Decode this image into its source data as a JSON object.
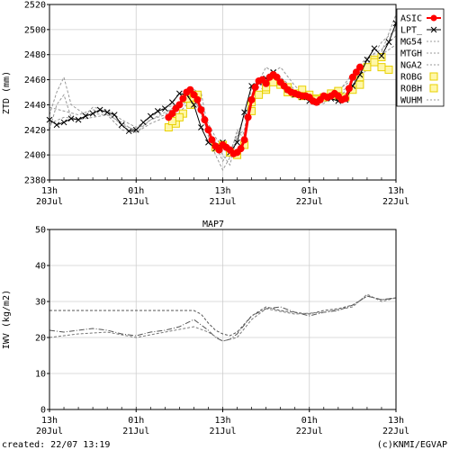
{
  "charts": [
    {
      "type": "line",
      "ylabel": "ZTD (mm)",
      "ylim": [
        2380,
        2520
      ],
      "yticks": [
        2380,
        2400,
        2420,
        2440,
        2460,
        2480,
        2500,
        2520
      ],
      "xlim": [
        0,
        48
      ],
      "xtick_hours": [
        0,
        12,
        24,
        36,
        48
      ],
      "xtick_labels": [
        [
          "13h",
          "20Jul"
        ],
        [
          "01h",
          "21Jul"
        ],
        [
          "13h",
          "21Jul"
        ],
        [
          "01h",
          "22Jul"
        ],
        [
          "13h",
          "22Jul"
        ]
      ],
      "legend_placement": "right",
      "legend": [
        "ASIC",
        "LPT_",
        "MG54",
        "MTGH",
        "NGA2",
        "ROBG",
        "ROBH",
        "WUHM"
      ],
      "series": [
        {
          "name": "LPT_",
          "color": "#000000",
          "marker": "x",
          "x": [
            0,
            1,
            2,
            3,
            4,
            5,
            6,
            7,
            8,
            9,
            10,
            11,
            12,
            13,
            14,
            15,
            16,
            17,
            18,
            19,
            20,
            21,
            22,
            23,
            24,
            25,
            26,
            27,
            28,
            29,
            30,
            31,
            32,
            33,
            34,
            35,
            36,
            37,
            38,
            39,
            40,
            41,
            42,
            43,
            44,
            45,
            46,
            47,
            48
          ],
          "y": [
            2428,
            2424,
            2426,
            2429,
            2428,
            2431,
            2433,
            2436,
            2434,
            2432,
            2424,
            2419,
            2420,
            2426,
            2431,
            2435,
            2437,
            2442,
            2449,
            2448,
            2440,
            2422,
            2410,
            2405,
            2410,
            2402,
            2410,
            2434,
            2455,
            2458,
            2461,
            2466,
            2458,
            2452,
            2448,
            2446,
            2443,
            2442,
            2446,
            2445,
            2443,
            2444,
            2455,
            2464,
            2476,
            2485,
            2479,
            2490,
            2505
          ]
        },
        {
          "name": "ASIC",
          "color": "#ff0000",
          "marker": "o",
          "x": [
            16.5,
            17,
            17.5,
            18,
            18.5,
            19,
            19.5,
            20,
            20.5,
            21,
            21.5,
            22,
            22.5,
            23,
            23.5,
            24,
            24.5,
            25,
            25.5,
            26,
            26.5,
            27,
            27.5,
            28,
            28.5,
            29,
            29.5,
            30,
            30.5,
            31,
            31.5,
            32,
            32.5,
            33,
            33.5,
            34,
            34.5,
            35,
            35.5,
            36,
            36.5,
            37,
            37.5,
            38,
            38.5,
            39,
            39.5,
            40,
            40.5,
            41,
            41.5,
            42,
            42.5,
            43
          ],
          "y": [
            2430,
            2433,
            2437,
            2440,
            2445,
            2450,
            2452,
            2448,
            2444,
            2436,
            2428,
            2420,
            2412,
            2407,
            2404,
            2408,
            2406,
            2404,
            2401,
            2402,
            2405,
            2412,
            2430,
            2444,
            2454,
            2459,
            2460,
            2457,
            2462,
            2464,
            2462,
            2458,
            2455,
            2452,
            2450,
            2449,
            2448,
            2447,
            2447,
            2446,
            2443,
            2442,
            2444,
            2447,
            2446,
            2447,
            2449,
            2447,
            2444,
            2445,
            2453,
            2462,
            2466,
            2470
          ]
        },
        {
          "name": "ROBH",
          "color": "#e8d000",
          "marker": "square",
          "x": [
            16.5,
            17.5,
            18.5,
            19.5,
            20.5,
            23,
            25,
            26,
            27,
            28,
            29,
            30,
            31,
            32,
            33,
            34,
            35,
            36,
            37,
            38,
            39,
            40,
            41,
            42,
            43,
            44,
            45,
            46,
            47
          ],
          "y": [
            2422,
            2425,
            2433,
            2440,
            2448,
            2406,
            2402,
            2400,
            2408,
            2435,
            2448,
            2452,
            2458,
            2456,
            2450,
            2449,
            2452,
            2448,
            2445,
            2446,
            2449,
            2451,
            2446,
            2452,
            2456,
            2470,
            2476,
            2470,
            2468
          ]
        },
        {
          "name": "ROBG",
          "color": "#e8d000",
          "marker": "square",
          "x": [
            17,
            18,
            19,
            20,
            24,
            28,
            30,
            33,
            35,
            37,
            40,
            43,
            45,
            46
          ],
          "y": [
            2427,
            2430,
            2445,
            2446,
            2408,
            2442,
            2454,
            2454,
            2447,
            2444,
            2447,
            2462,
            2474,
            2478
          ]
        },
        {
          "name": "MG54",
          "color": "#999999",
          "marker": "dash",
          "x": [
            0,
            1,
            2,
            3,
            4,
            5,
            6,
            8,
            10,
            12,
            14,
            16,
            18,
            20,
            21,
            22,
            23,
            24,
            25,
            26,
            27,
            28,
            30,
            32,
            34,
            36,
            38,
            40,
            42,
            44,
            46,
            48
          ],
          "y": [
            2432,
            2450,
            2462,
            2440,
            2436,
            2432,
            2438,
            2436,
            2428,
            2422,
            2430,
            2438,
            2440,
            2452,
            2450,
            2420,
            2410,
            2400,
            2392,
            2415,
            2420,
            2455,
            2462,
            2470,
            2455,
            2445,
            2448,
            2452,
            2460,
            2472,
            2490,
            2500
          ]
        },
        {
          "name": "MTGH",
          "color": "#999999",
          "marker": "dash",
          "x": [
            0,
            1,
            2,
            3,
            4,
            6,
            8,
            10,
            12,
            14,
            16,
            18,
            20,
            21,
            22,
            23,
            24,
            25,
            26,
            27,
            28,
            30,
            32,
            34,
            36,
            38,
            40,
            42,
            44,
            46,
            48
          ],
          "y": [
            2420,
            2440,
            2448,
            2430,
            2428,
            2430,
            2432,
            2426,
            2418,
            2425,
            2430,
            2434,
            2446,
            2440,
            2415,
            2400,
            2388,
            2398,
            2420,
            2412,
            2448,
            2470,
            2462,
            2452,
            2443,
            2441,
            2450,
            2465,
            2478,
            2484,
            2495
          ]
        },
        {
          "name": "NGA2",
          "color": "#999999",
          "marker": "dash",
          "x": [
            0,
            2,
            4,
            6,
            8,
            10,
            12,
            14,
            16,
            18,
            20,
            22,
            23,
            24,
            25,
            26,
            28,
            30,
            32,
            34,
            36,
            38,
            40,
            42,
            44,
            46,
            48
          ],
          "y": [
            2438,
            2435,
            2432,
            2436,
            2434,
            2424,
            2420,
            2428,
            2434,
            2440,
            2444,
            2425,
            2414,
            2406,
            2398,
            2400,
            2440,
            2458,
            2454,
            2448,
            2444,
            2446,
            2446,
            2456,
            2470,
            2480,
            2488
          ]
        },
        {
          "name": "WUHM",
          "color": "#999999",
          "marker": "dash",
          "x": [
            0,
            2,
            4,
            6,
            8,
            10,
            12,
            14,
            16,
            18,
            20,
            22,
            23,
            24,
            25,
            26,
            28,
            30,
            32,
            34,
            36,
            38,
            40,
            42,
            44,
            46,
            48
          ],
          "y": [
            2425,
            2430,
            2429,
            2433,
            2432,
            2420,
            2418,
            2428,
            2432,
            2442,
            2446,
            2418,
            2408,
            2395,
            2403,
            2416,
            2446,
            2462,
            2460,
            2448,
            2444,
            2442,
            2448,
            2458,
            2468,
            2482,
            2512
          ]
        }
      ]
    },
    {
      "type": "line",
      "title": "MAP7",
      "ylabel": "IWV (kg/m2)",
      "ylim": [
        0,
        50
      ],
      "yticks": [
        0,
        10,
        20,
        30,
        40,
        50
      ],
      "xlim": [
        0,
        48
      ],
      "xtick_hours": [
        0,
        12,
        24,
        36,
        48
      ],
      "xtick_labels": [
        [
          "13h",
          "20Jul"
        ],
        [
          "01h",
          "21Jul"
        ],
        [
          "13h",
          "21Jul"
        ],
        [
          "01h",
          "22Jul"
        ],
        [
          "13h",
          "22Jul"
        ]
      ],
      "series": [
        {
          "name": "",
          "color": "#555555",
          "style": "dashed",
          "x": [
            0,
            20,
            21,
            22,
            23,
            24,
            25,
            26,
            28,
            30,
            32,
            34,
            36,
            38,
            40,
            42,
            44,
            46,
            48
          ],
          "y": [
            27.5,
            27.5,
            26.5,
            24,
            22,
            21,
            20.5,
            21.5,
            26,
            28.5,
            27.5,
            27,
            26.5,
            27.5,
            28,
            29,
            31.5,
            30.5,
            31
          ]
        },
        {
          "name": "",
          "color": "#555555",
          "style": "dashdot",
          "x": [
            0,
            2,
            4,
            6,
            8,
            10,
            12,
            14,
            16,
            18,
            20,
            22,
            23,
            24,
            25,
            26,
            28,
            30,
            32,
            34,
            36,
            38,
            40,
            42,
            44,
            46,
            48
          ],
          "y": [
            22,
            21.5,
            22,
            22.5,
            22,
            21,
            20.5,
            21.5,
            22,
            23,
            25,
            22,
            20,
            19,
            19.5,
            21,
            26,
            28,
            28.5,
            27,
            26,
            27,
            27.5,
            29,
            31.5,
            30.5,
            31
          ]
        },
        {
          "name": "",
          "color": "#777777",
          "style": "dashed",
          "x": [
            0,
            4,
            8,
            12,
            16,
            20,
            22,
            24,
            26,
            28,
            30,
            34,
            38,
            42,
            44,
            46,
            48
          ],
          "y": [
            20,
            21,
            21.5,
            20,
            21.5,
            23,
            21.5,
            19,
            20,
            25,
            28,
            26.5,
            27,
            28.5,
            32,
            30,
            31
          ]
        }
      ]
    }
  ],
  "footer": {
    "created": "created: 22/07 13:19",
    "credit": "(c)KNMI/EGVAP"
  }
}
